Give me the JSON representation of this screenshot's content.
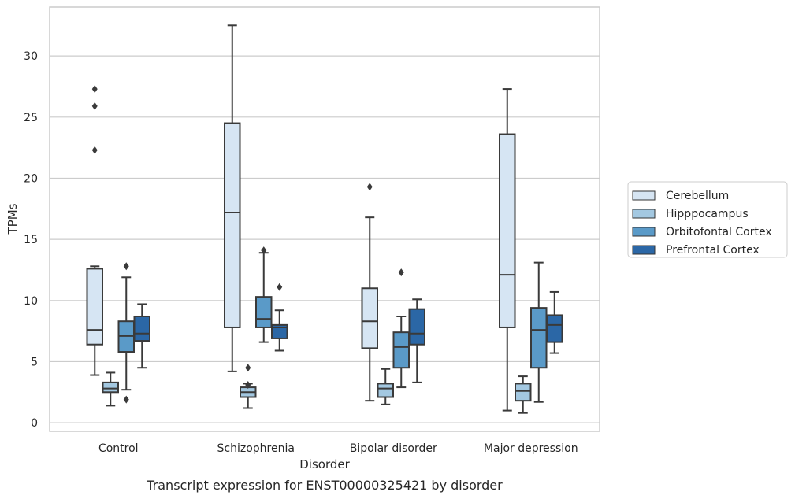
{
  "chart_data": {
    "type": "box",
    "caption": "Transcript expression for ENST00000325421 by disorder",
    "xlabel": "Disorder",
    "ylabel": "TPMs",
    "ylim": [
      -0.7,
      34
    ],
    "yticks": [
      0,
      5,
      10,
      15,
      20,
      25,
      30
    ],
    "grid": "horizontal",
    "legend_position": "right",
    "categories": [
      "Control",
      "Schizophrenia",
      "Bipolar disorder",
      "Major depression"
    ],
    "series": [
      {
        "name": "Cerebellum",
        "color": "#d6e5f3",
        "boxes": [
          {
            "whislo": 3.9,
            "q1": 6.4,
            "med": 7.6,
            "q3": 12.6,
            "whishi": 12.8,
            "fliers": [
              22.3,
              25.9,
              27.3
            ]
          },
          {
            "whislo": 4.2,
            "q1": 7.8,
            "med": 17.2,
            "q3": 24.5,
            "whishi": 32.5,
            "fliers": []
          },
          {
            "whislo": 1.8,
            "q1": 6.1,
            "med": 8.3,
            "q3": 11.0,
            "whishi": 16.8,
            "fliers": [
              19.3
            ]
          },
          {
            "whislo": 1.0,
            "q1": 7.8,
            "med": 12.1,
            "q3": 23.6,
            "whishi": 27.3,
            "fliers": []
          }
        ]
      },
      {
        "name": "Hipppocampus",
        "color": "#a3c8e1",
        "boxes": [
          {
            "whislo": 1.4,
            "q1": 2.5,
            "med": 2.8,
            "q3": 3.3,
            "whishi": 4.1,
            "fliers": []
          },
          {
            "whislo": 1.2,
            "q1": 2.1,
            "med": 2.5,
            "q3": 2.9,
            "whishi": 3.2,
            "fliers": [
              3.1,
              4.5
            ]
          },
          {
            "whislo": 1.5,
            "q1": 2.1,
            "med": 2.8,
            "q3": 3.2,
            "whishi": 4.4,
            "fliers": []
          },
          {
            "whislo": 0.8,
            "q1": 1.8,
            "med": 2.6,
            "q3": 3.2,
            "whishi": 3.8,
            "fliers": []
          }
        ]
      },
      {
        "name": "Orbitofontal Cortex",
        "color": "#5a9ac8",
        "boxes": [
          {
            "whislo": 2.7,
            "q1": 5.8,
            "med": 7.1,
            "q3": 8.3,
            "whishi": 11.9,
            "fliers": [
              1.9,
              12.8
            ]
          },
          {
            "whislo": 6.6,
            "q1": 7.8,
            "med": 8.5,
            "q3": 10.3,
            "whishi": 13.9,
            "fliers": [
              14.1
            ]
          },
          {
            "whislo": 2.9,
            "q1": 4.5,
            "med": 6.2,
            "q3": 7.4,
            "whishi": 8.7,
            "fliers": [
              12.3
            ]
          },
          {
            "whislo": 1.7,
            "q1": 4.5,
            "med": 7.6,
            "q3": 9.4,
            "whishi": 13.1,
            "fliers": []
          }
        ]
      },
      {
        "name": "Prefrontal Cortex",
        "color": "#2b67a6",
        "boxes": [
          {
            "whislo": 4.5,
            "q1": 6.7,
            "med": 7.3,
            "q3": 8.7,
            "whishi": 9.7,
            "fliers": []
          },
          {
            "whislo": 5.9,
            "q1": 6.9,
            "med": 7.8,
            "q3": 8.0,
            "whishi": 9.2,
            "fliers": [
              11.1
            ]
          },
          {
            "whislo": 3.3,
            "q1": 6.4,
            "med": 7.3,
            "q3": 9.3,
            "whishi": 10.1,
            "fliers": []
          },
          {
            "whislo": 5.7,
            "q1": 6.6,
            "med": 8.0,
            "q3": 8.8,
            "whishi": 10.7,
            "fliers": []
          }
        ]
      }
    ]
  }
}
